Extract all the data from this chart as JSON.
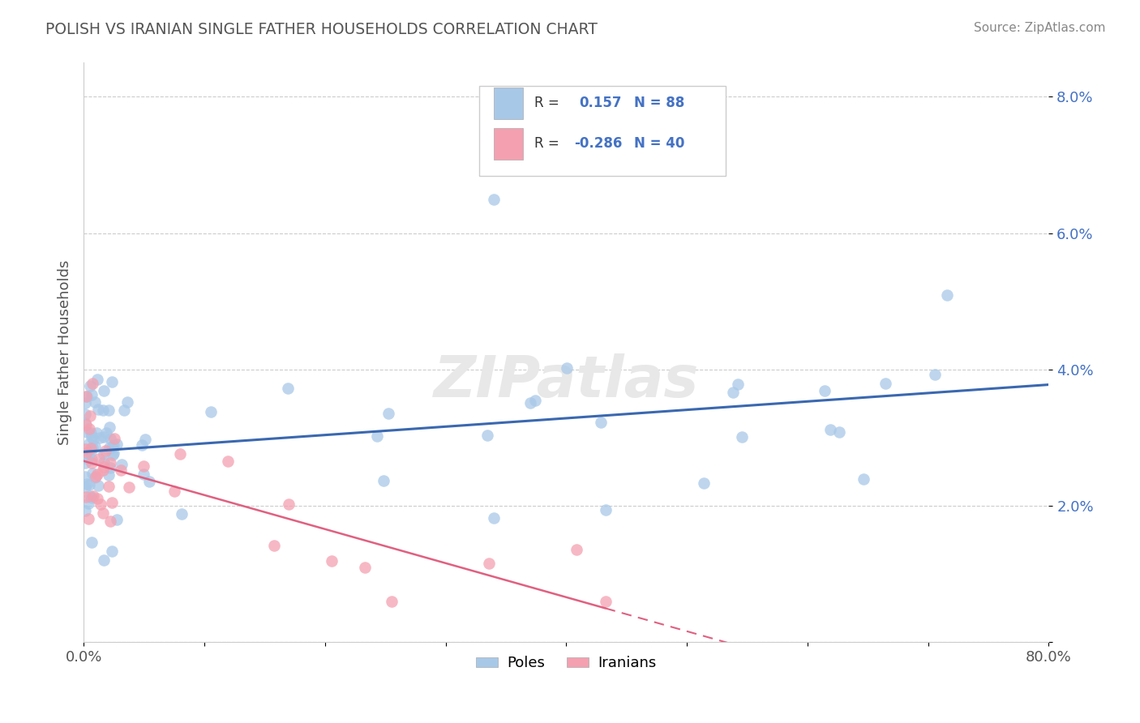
{
  "title": "POLISH VS IRANIAN SINGLE FATHER HOUSEHOLDS CORRELATION CHART",
  "source": "Source: ZipAtlas.com",
  "ylabel": "Single Father Households",
  "xlim": [
    0.0,
    0.8
  ],
  "ylim": [
    0.0,
    0.085
  ],
  "xtick_positions": [
    0.0,
    0.1,
    0.2,
    0.3,
    0.4,
    0.5,
    0.6,
    0.7,
    0.8
  ],
  "xticklabels": [
    "0.0%",
    "",
    "",
    "",
    "",
    "",
    "",
    "",
    "80.0%"
  ],
  "ytick_positions": [
    0.0,
    0.02,
    0.04,
    0.06,
    0.08
  ],
  "yticklabels": [
    "",
    "2.0%",
    "4.0%",
    "6.0%",
    "8.0%"
  ],
  "poles_R": 0.157,
  "poles_N": 88,
  "iranians_R": -0.286,
  "iranians_N": 40,
  "poles_color": "#a8c8e8",
  "iranians_color": "#f4a0b0",
  "poles_line_color": "#3a68b0",
  "iranians_line_color": "#e06080",
  "background_color": "#ffffff",
  "grid_color": "#cccccc",
  "title_color": "#555555",
  "tick_color": "#4472c4",
  "watermark_color": "#e8e8e8"
}
